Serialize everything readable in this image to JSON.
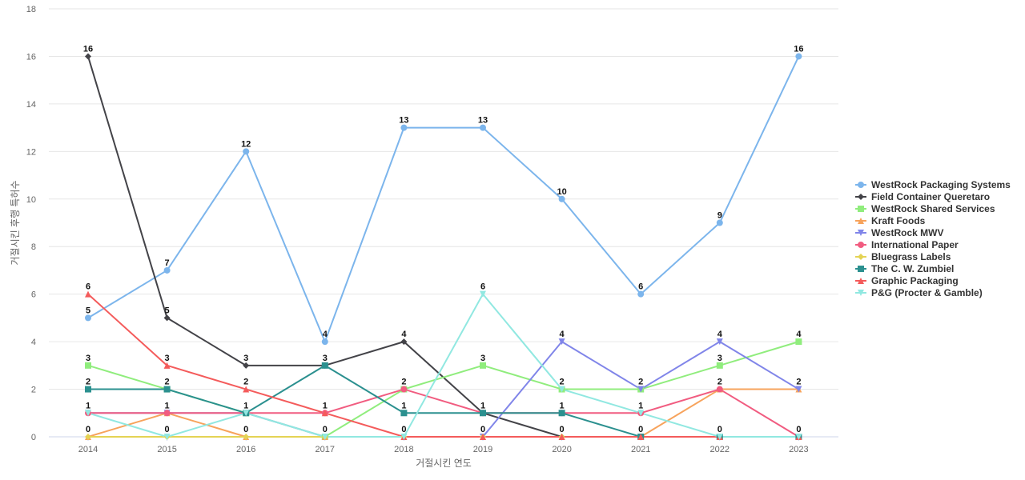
{
  "chart_data": {
    "type": "line",
    "xlabel": "거절시킨 연도",
    "ylabel": "거절시킨 후행 특허수",
    "x": [
      "2014",
      "2015",
      "2016",
      "2017",
      "2018",
      "2019",
      "2020",
      "2021",
      "2022",
      "2023"
    ],
    "ylim": [
      0,
      18
    ],
    "yticks": [
      0,
      2,
      4,
      6,
      8,
      10,
      12,
      14,
      16,
      18
    ],
    "grid": true,
    "legend_position": "right",
    "series": [
      {
        "name": "WestRock Packaging Systems",
        "color": "#7cb5ec",
        "marker": "circle",
        "values": [
          5,
          7,
          12,
          4,
          13,
          13,
          10,
          6,
          9,
          16
        ]
      },
      {
        "name": "Field Container Queretaro",
        "color": "#434348",
        "marker": "diamond",
        "values": [
          16,
          5,
          3,
          3,
          4,
          1,
          0,
          0,
          0,
          0
        ]
      },
      {
        "name": "WestRock Shared Services",
        "color": "#90ed7d",
        "marker": "square",
        "values": [
          3,
          2,
          1,
          0,
          2,
          3,
          2,
          2,
          3,
          4
        ]
      },
      {
        "name": "Kraft Foods",
        "color": "#f7a35c",
        "marker": "triangle",
        "values": [
          0,
          1,
          0,
          0,
          0,
          0,
          0,
          0,
          2,
          2
        ]
      },
      {
        "name": "WestRock MWV",
        "color": "#8085e9",
        "marker": "triangle-down",
        "values": [
          1,
          1,
          1,
          0,
          0,
          0,
          4,
          2,
          4,
          2
        ]
      },
      {
        "name": "International Paper",
        "color": "#f15c80",
        "marker": "circle",
        "values": [
          1,
          1,
          1,
          1,
          2,
          1,
          1,
          1,
          2,
          0
        ]
      },
      {
        "name": "Bluegrass Labels",
        "color": "#e4d354",
        "marker": "diamond",
        "values": [
          0,
          0,
          0,
          0,
          0,
          0,
          0,
          0,
          0,
          0
        ]
      },
      {
        "name": "The C. W. Zumbiel",
        "color": "#2b908f",
        "marker": "square",
        "values": [
          2,
          2,
          1,
          3,
          1,
          1,
          1,
          0,
          0,
          0
        ]
      },
      {
        "name": "Graphic Packaging",
        "color": "#f45b5b",
        "marker": "triangle",
        "values": [
          6,
          3,
          2,
          1,
          0,
          0,
          0,
          0,
          0,
          0
        ]
      },
      {
        "name": "P&G (Procter & Gamble)",
        "color": "#91e8e1",
        "marker": "triangle-down",
        "values": [
          1,
          0,
          1,
          0,
          0,
          6,
          2,
          1,
          0,
          0
        ]
      }
    ],
    "data_labels": [
      {
        "x": "2014",
        "values": [
          "16",
          "6",
          "5",
          "3",
          "2",
          "1",
          "0"
        ]
      },
      {
        "x": "2015",
        "values": [
          "7",
          "5",
          "3",
          "2",
          "1",
          "0"
        ]
      },
      {
        "x": "2016",
        "values": [
          "12",
          "3",
          "2",
          "1",
          "0"
        ]
      },
      {
        "x": "2017",
        "values": [
          "4",
          "3",
          "1",
          "0"
        ]
      },
      {
        "x": "2018",
        "values": [
          "13",
          "4",
          "2",
          "1",
          "0"
        ]
      },
      {
        "x": "2019",
        "values": [
          "13",
          "6",
          "3",
          "1",
          "0"
        ]
      },
      {
        "x": "2020",
        "values": [
          "10",
          "4",
          "2",
          "1",
          "0"
        ]
      },
      {
        "x": "2021",
        "values": [
          "6",
          "2",
          "1",
          "0"
        ]
      },
      {
        "x": "2022",
        "values": [
          "9",
          "4",
          "3",
          "2",
          "0"
        ]
      },
      {
        "x": "2023",
        "values": [
          "16",
          "4",
          "2",
          "0"
        ]
      }
    ]
  }
}
